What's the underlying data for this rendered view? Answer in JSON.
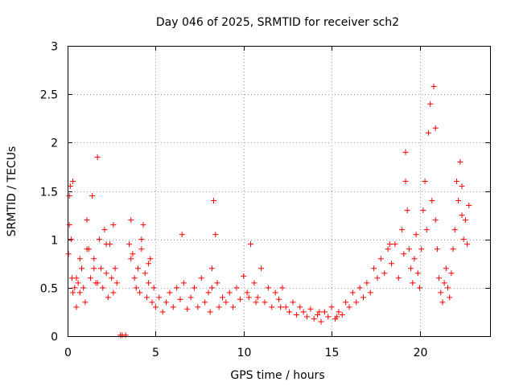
{
  "chart_data": {
    "type": "scatter",
    "title": "Day 046 of 2025, SRMTID for receiver sch2",
    "xlabel": "GPS time / hours",
    "ylabel": "SRMTID / TECUs",
    "xlim": [
      0,
      24
    ],
    "ylim": [
      0,
      3
    ],
    "xticks": [
      0,
      5,
      10,
      15,
      20
    ],
    "xtick_labels": [
      "0",
      "5",
      "10",
      "15",
      "20"
    ],
    "yticks": [
      0,
      0.5,
      1,
      1.5,
      2,
      2.5,
      3
    ],
    "ytick_labels": [
      "0",
      "0.5",
      "1",
      "1.5",
      "2",
      "2.5",
      "3"
    ],
    "grid": true,
    "marker": "plus",
    "color": "#ff0000",
    "series": [
      {
        "name": "SRMTID",
        "x": [
          0.05,
          0.1,
          0.15,
          0.2,
          0.25,
          0.3,
          0.4,
          0.5,
          0.6,
          0.7,
          0.8,
          0.9,
          1.0,
          1.1,
          1.2,
          1.3,
          1.4,
          1.5,
          1.6,
          1.7,
          1.8,
          1.9,
          2.0,
          2.1,
          2.2,
          2.3,
          2.4,
          2.5,
          2.6,
          2.7,
          2.8,
          3.0,
          3.1,
          3.3,
          3.5,
          3.6,
          3.7,
          3.8,
          3.9,
          4.0,
          4.1,
          4.2,
          4.3,
          4.4,
          4.5,
          4.6,
          4.7,
          4.8,
          4.9,
          5.0,
          5.2,
          5.4,
          5.6,
          5.8,
          6.0,
          6.2,
          6.4,
          6.6,
          6.8,
          7.0,
          7.2,
          7.4,
          7.6,
          7.8,
          8.0,
          8.1,
          8.2,
          8.3,
          8.4,
          8.5,
          8.6,
          8.8,
          9.0,
          9.2,
          9.4,
          9.6,
          9.8,
          10.0,
          10.2,
          10.4,
          10.6,
          10.8,
          11.0,
          11.2,
          11.4,
          11.6,
          11.8,
          12.0,
          12.2,
          12.4,
          12.6,
          12.8,
          13.0,
          13.2,
          13.4,
          13.6,
          13.8,
          14.0,
          14.2,
          14.4,
          14.6,
          14.8,
          15.0,
          15.2,
          15.4,
          15.6,
          15.8,
          16.0,
          16.2,
          16.4,
          16.6,
          16.8,
          17.0,
          17.2,
          17.4,
          17.6,
          17.8,
          18.0,
          18.2,
          18.4,
          18.6,
          18.8,
          19.0,
          19.1,
          19.2,
          19.3,
          19.4,
          19.5,
          19.6,
          19.7,
          19.8,
          19.9,
          20.0,
          20.1,
          20.2,
          20.3,
          20.4,
          20.5,
          20.6,
          20.7,
          20.8,
          20.9,
          21.0,
          21.1,
          21.2,
          21.3,
          21.4,
          21.5,
          21.6,
          21.7,
          21.8,
          21.9,
          22.0,
          22.1,
          22.2,
          22.3,
          22.4,
          22.5,
          22.6,
          22.7,
          22.8,
          0.1,
          0.3,
          0.5,
          0.7,
          1.1,
          1.5,
          1.7,
          2.2,
          2.6,
          3.6,
          4.2,
          4.6,
          6.5,
          8.2,
          10.3,
          10.7,
          12.1,
          14.3,
          15.3,
          18.3,
          19.2,
          20.9,
          22.4
        ],
        "y": [
          0.85,
          1.15,
          1.55,
          1.0,
          0.6,
          0.45,
          0.5,
          0.3,
          0.55,
          0.8,
          0.7,
          0.5,
          0.35,
          1.2,
          0.9,
          0.6,
          1.45,
          0.8,
          0.55,
          1.85,
          1.0,
          0.7,
          0.5,
          1.1,
          0.65,
          0.4,
          0.95,
          0.6,
          0.45,
          0.7,
          0.55,
          0.01,
          0.01,
          0.01,
          0.95,
          1.2,
          0.85,
          0.6,
          0.5,
          0.7,
          0.45,
          0.9,
          1.15,
          0.65,
          0.4,
          0.55,
          0.8,
          0.35,
          0.5,
          0.3,
          0.4,
          0.25,
          0.35,
          0.45,
          0.3,
          0.5,
          0.38,
          0.55,
          0.28,
          0.4,
          0.5,
          0.3,
          0.6,
          0.35,
          0.45,
          0.25,
          0.7,
          1.4,
          1.05,
          0.55,
          0.3,
          0.4,
          0.35,
          0.45,
          0.3,
          0.5,
          0.38,
          0.62,
          0.45,
          0.95,
          0.55,
          0.4,
          0.7,
          0.35,
          0.5,
          0.3,
          0.45,
          0.38,
          0.5,
          0.3,
          0.25,
          0.35,
          0.22,
          0.3,
          0.25,
          0.2,
          0.28,
          0.18,
          0.22,
          0.15,
          0.25,
          0.2,
          0.3,
          0.18,
          0.25,
          0.22,
          0.35,
          0.3,
          0.45,
          0.35,
          0.5,
          0.4,
          0.55,
          0.45,
          0.7,
          0.6,
          0.8,
          0.65,
          0.9,
          0.75,
          0.95,
          0.6,
          1.1,
          0.85,
          1.9,
          1.3,
          0.9,
          0.7,
          0.55,
          0.8,
          1.05,
          0.65,
          0.5,
          0.9,
          1.3,
          1.6,
          1.1,
          2.1,
          2.4,
          1.4,
          2.58,
          1.2,
          0.9,
          0.6,
          0.45,
          0.35,
          0.55,
          0.7,
          0.5,
          0.4,
          0.65,
          0.9,
          1.1,
          1.6,
          1.4,
          1.8,
          1.25,
          1.0,
          1.2,
          0.95,
          1.35,
          1.45,
          1.6,
          0.6,
          0.45,
          0.9,
          0.7,
          0.55,
          0.95,
          1.15,
          0.8,
          1.0,
          0.75,
          1.05,
          0.5,
          0.4,
          0.35,
          0.3,
          0.25,
          0.2,
          0.95,
          1.6,
          2.15,
          1.55
        ]
      }
    ]
  }
}
